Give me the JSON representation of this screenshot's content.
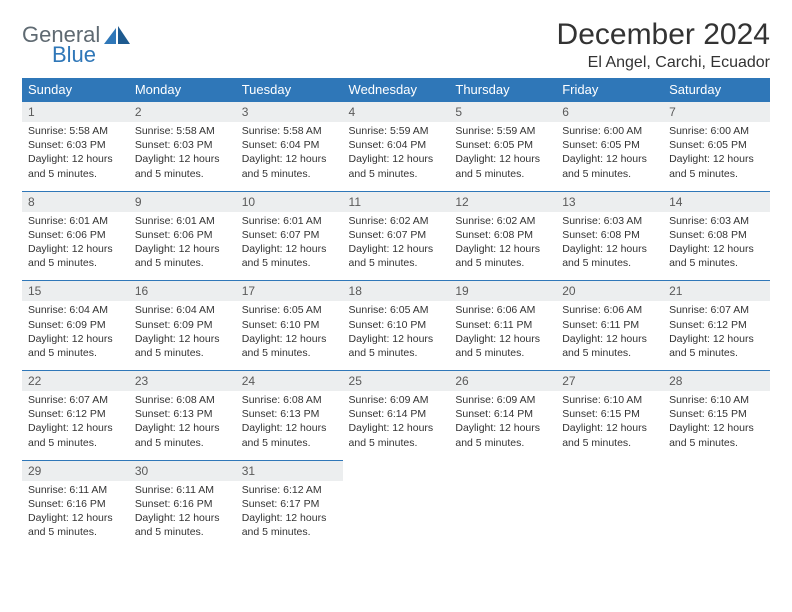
{
  "logo": {
    "text1": "General",
    "text2": "Blue"
  },
  "title": "December 2024",
  "location": "El Angel, Carchi, Ecuador",
  "colors": {
    "primary": "#2f77b8",
    "headerText": "#ffffff",
    "dayNumBg": "#eceeef",
    "dayNumText": "#5a5a5a",
    "bodyText": "#333333",
    "logoGray": "#5f6a72",
    "pageBg": "#ffffff"
  },
  "dayNames": [
    "Sunday",
    "Monday",
    "Tuesday",
    "Wednesday",
    "Thursday",
    "Friday",
    "Saturday"
  ],
  "weeks": [
    [
      {
        "n": "1",
        "sr": "5:58 AM",
        "ss": "6:03 PM",
        "dl": "12 hours and 5 minutes."
      },
      {
        "n": "2",
        "sr": "5:58 AM",
        "ss": "6:03 PM",
        "dl": "12 hours and 5 minutes."
      },
      {
        "n": "3",
        "sr": "5:58 AM",
        "ss": "6:04 PM",
        "dl": "12 hours and 5 minutes."
      },
      {
        "n": "4",
        "sr": "5:59 AM",
        "ss": "6:04 PM",
        "dl": "12 hours and 5 minutes."
      },
      {
        "n": "5",
        "sr": "5:59 AM",
        "ss": "6:05 PM",
        "dl": "12 hours and 5 minutes."
      },
      {
        "n": "6",
        "sr": "6:00 AM",
        "ss": "6:05 PM",
        "dl": "12 hours and 5 minutes."
      },
      {
        "n": "7",
        "sr": "6:00 AM",
        "ss": "6:05 PM",
        "dl": "12 hours and 5 minutes."
      }
    ],
    [
      {
        "n": "8",
        "sr": "6:01 AM",
        "ss": "6:06 PM",
        "dl": "12 hours and 5 minutes."
      },
      {
        "n": "9",
        "sr": "6:01 AM",
        "ss": "6:06 PM",
        "dl": "12 hours and 5 minutes."
      },
      {
        "n": "10",
        "sr": "6:01 AM",
        "ss": "6:07 PM",
        "dl": "12 hours and 5 minutes."
      },
      {
        "n": "11",
        "sr": "6:02 AM",
        "ss": "6:07 PM",
        "dl": "12 hours and 5 minutes."
      },
      {
        "n": "12",
        "sr": "6:02 AM",
        "ss": "6:08 PM",
        "dl": "12 hours and 5 minutes."
      },
      {
        "n": "13",
        "sr": "6:03 AM",
        "ss": "6:08 PM",
        "dl": "12 hours and 5 minutes."
      },
      {
        "n": "14",
        "sr": "6:03 AM",
        "ss": "6:08 PM",
        "dl": "12 hours and 5 minutes."
      }
    ],
    [
      {
        "n": "15",
        "sr": "6:04 AM",
        "ss": "6:09 PM",
        "dl": "12 hours and 5 minutes."
      },
      {
        "n": "16",
        "sr": "6:04 AM",
        "ss": "6:09 PM",
        "dl": "12 hours and 5 minutes."
      },
      {
        "n": "17",
        "sr": "6:05 AM",
        "ss": "6:10 PM",
        "dl": "12 hours and 5 minutes."
      },
      {
        "n": "18",
        "sr": "6:05 AM",
        "ss": "6:10 PM",
        "dl": "12 hours and 5 minutes."
      },
      {
        "n": "19",
        "sr": "6:06 AM",
        "ss": "6:11 PM",
        "dl": "12 hours and 5 minutes."
      },
      {
        "n": "20",
        "sr": "6:06 AM",
        "ss": "6:11 PM",
        "dl": "12 hours and 5 minutes."
      },
      {
        "n": "21",
        "sr": "6:07 AM",
        "ss": "6:12 PM",
        "dl": "12 hours and 5 minutes."
      }
    ],
    [
      {
        "n": "22",
        "sr": "6:07 AM",
        "ss": "6:12 PM",
        "dl": "12 hours and 5 minutes."
      },
      {
        "n": "23",
        "sr": "6:08 AM",
        "ss": "6:13 PM",
        "dl": "12 hours and 5 minutes."
      },
      {
        "n": "24",
        "sr": "6:08 AM",
        "ss": "6:13 PM",
        "dl": "12 hours and 5 minutes."
      },
      {
        "n": "25",
        "sr": "6:09 AM",
        "ss": "6:14 PM",
        "dl": "12 hours and 5 minutes."
      },
      {
        "n": "26",
        "sr": "6:09 AM",
        "ss": "6:14 PM",
        "dl": "12 hours and 5 minutes."
      },
      {
        "n": "27",
        "sr": "6:10 AM",
        "ss": "6:15 PM",
        "dl": "12 hours and 5 minutes."
      },
      {
        "n": "28",
        "sr": "6:10 AM",
        "ss": "6:15 PM",
        "dl": "12 hours and 5 minutes."
      }
    ],
    [
      {
        "n": "29",
        "sr": "6:11 AM",
        "ss": "6:16 PM",
        "dl": "12 hours and 5 minutes."
      },
      {
        "n": "30",
        "sr": "6:11 AM",
        "ss": "6:16 PM",
        "dl": "12 hours and 5 minutes."
      },
      {
        "n": "31",
        "sr": "6:12 AM",
        "ss": "6:17 PM",
        "dl": "12 hours and 5 minutes."
      },
      null,
      null,
      null,
      null
    ]
  ],
  "labels": {
    "sunrise": "Sunrise:",
    "sunset": "Sunset:",
    "daylight": "Daylight:"
  }
}
